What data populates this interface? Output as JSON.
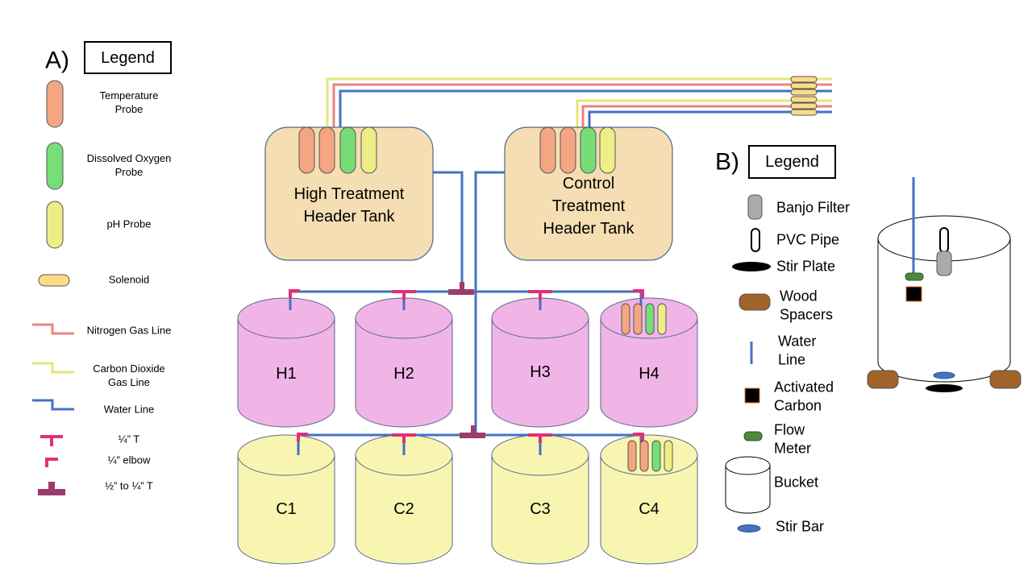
{
  "panel_a": {
    "label": "A)",
    "legend_title": "Legend",
    "items": [
      "Temperature Probe",
      "Dissolved Oxygen Probe",
      "pH Probe",
      "Solenoid",
      "Nitrogen Gas Line",
      "Carbon Dioxide Gas Line",
      "Water Line",
      "¼” T",
      "¼” elbow",
      "½” to ¼” T"
    ]
  },
  "header_tanks": [
    "High Treatment Header Tank",
    "Control Treatment Header Tank"
  ],
  "tanks": {
    "high": [
      "H1",
      "H2",
      "H3",
      "H4"
    ],
    "control": [
      "C1",
      "C2",
      "C3",
      "C4"
    ]
  },
  "panel_b": {
    "label": "B)",
    "legend_title": "Legend",
    "items": [
      "Banjo Filter",
      "PVC Pipe",
      "Stir Plate",
      "Wood Spacers",
      "Water Line",
      "Activated Carbon",
      "Flow Meter",
      "Bucket",
      "Stir Bar"
    ]
  }
}
